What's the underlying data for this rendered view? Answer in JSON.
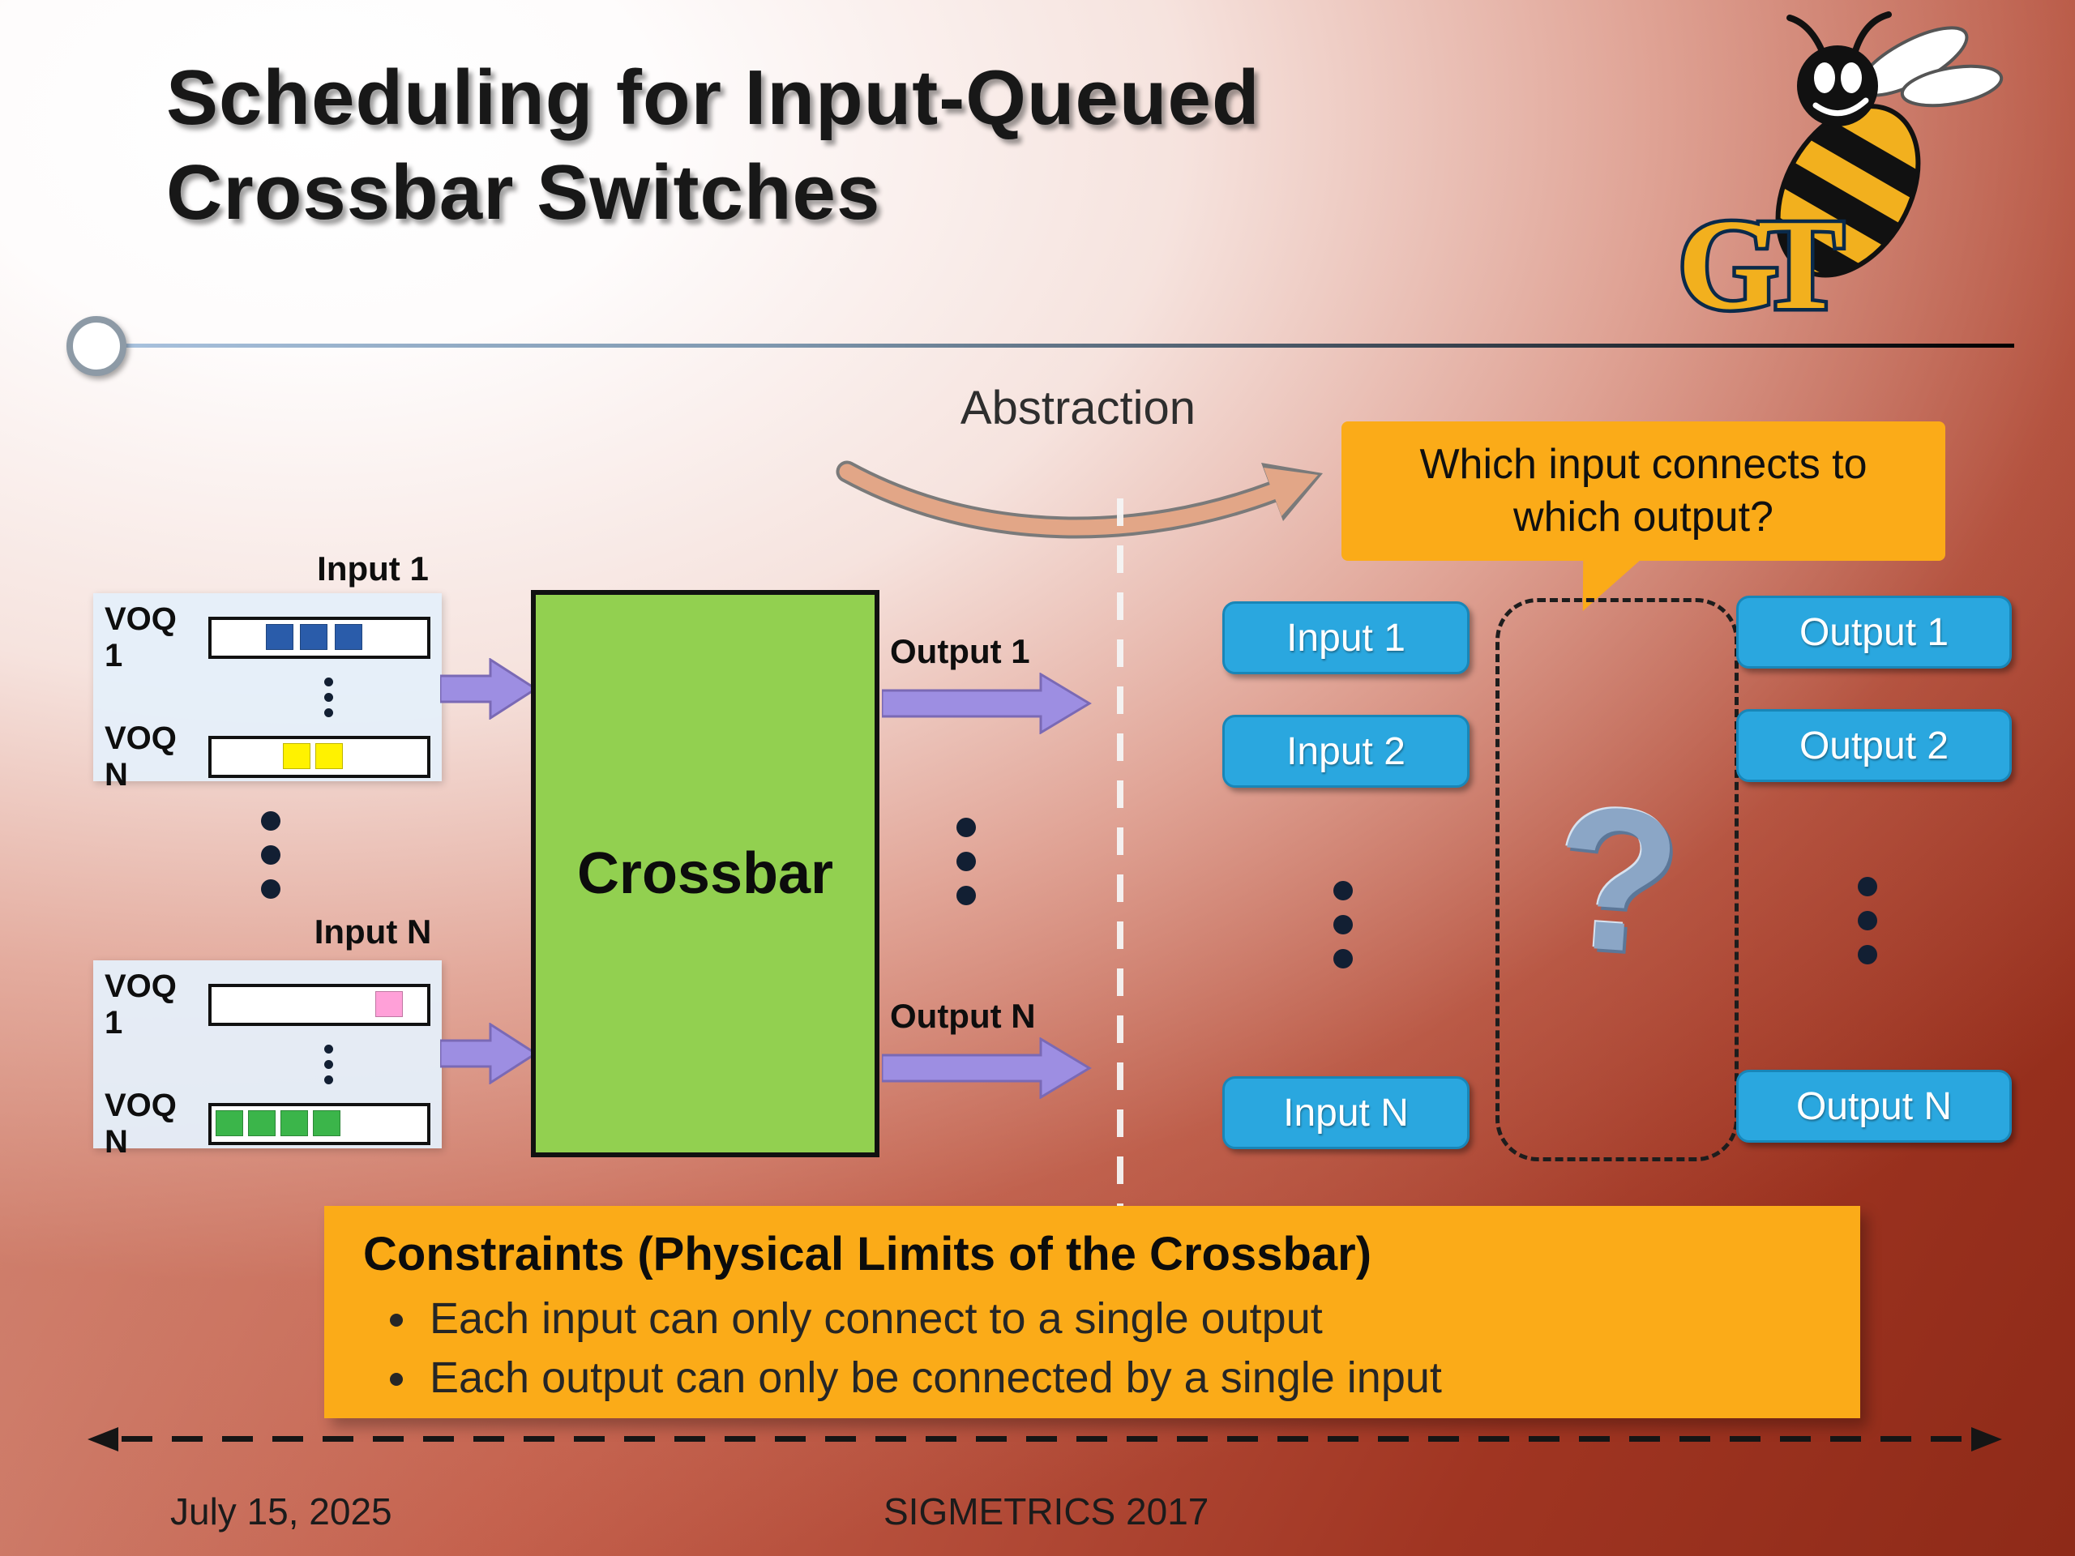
{
  "title_lines": [
    "Scheduling for Input-Queued",
    "Crossbar Switches"
  ],
  "abstraction_label": "Abstraction",
  "logo": {
    "letters": "GT"
  },
  "left": {
    "crossbar_label": "Crossbar",
    "output1_label": "Output 1",
    "outputN_label": "Output N",
    "input1": {
      "label": "Input 1",
      "rows": [
        {
          "label": "VOQ 1",
          "cells": [
            {
              "color": "#2a5caa",
              "x": 25
            },
            {
              "color": "#2a5caa",
              "x": 41
            },
            {
              "color": "#2a5caa",
              "x": 57
            }
          ]
        },
        {
          "label": "VOQ N",
          "cells": [
            {
              "color": "#fff200",
              "x": 33
            },
            {
              "color": "#fff200",
              "x": 48
            }
          ]
        }
      ]
    },
    "inputN": {
      "label": "Input N",
      "rows": [
        {
          "label": "VOQ 1",
          "cells": [
            {
              "color": "#ffa0d8",
              "x": 76
            }
          ]
        },
        {
          "label": "VOQ N",
          "cells": [
            {
              "color": "#3bb54a",
              "x": 2
            },
            {
              "color": "#3bb54a",
              "x": 17
            },
            {
              "color": "#3bb54a",
              "x": 32
            },
            {
              "color": "#3bb54a",
              "x": 47
            }
          ]
        }
      ]
    }
  },
  "right": {
    "question": "Which input connects to which output?",
    "question_mark": "?",
    "inputs": [
      "Input 1",
      "Input 2",
      "Input N"
    ],
    "outputs": [
      "Output 1",
      "Output 2",
      "Output N"
    ]
  },
  "constraints": {
    "heading": "Constraints (Physical Limits of the Crossbar)",
    "bullets": [
      "Each input can only connect to a single output",
      "Each output can only be connected by a single input"
    ]
  },
  "footer": {
    "date": "July 15, 2025",
    "conference": "SIGMETRICS 2017"
  },
  "colors": {
    "crossbar_green": "#92d050",
    "arrow_purple": "#9d8ee2",
    "arrow_purple_border": "#7a69b5",
    "button_blue": "#2aa7df",
    "button_blue_border": "#1886b8",
    "accent_gold": "#fbab18"
  }
}
